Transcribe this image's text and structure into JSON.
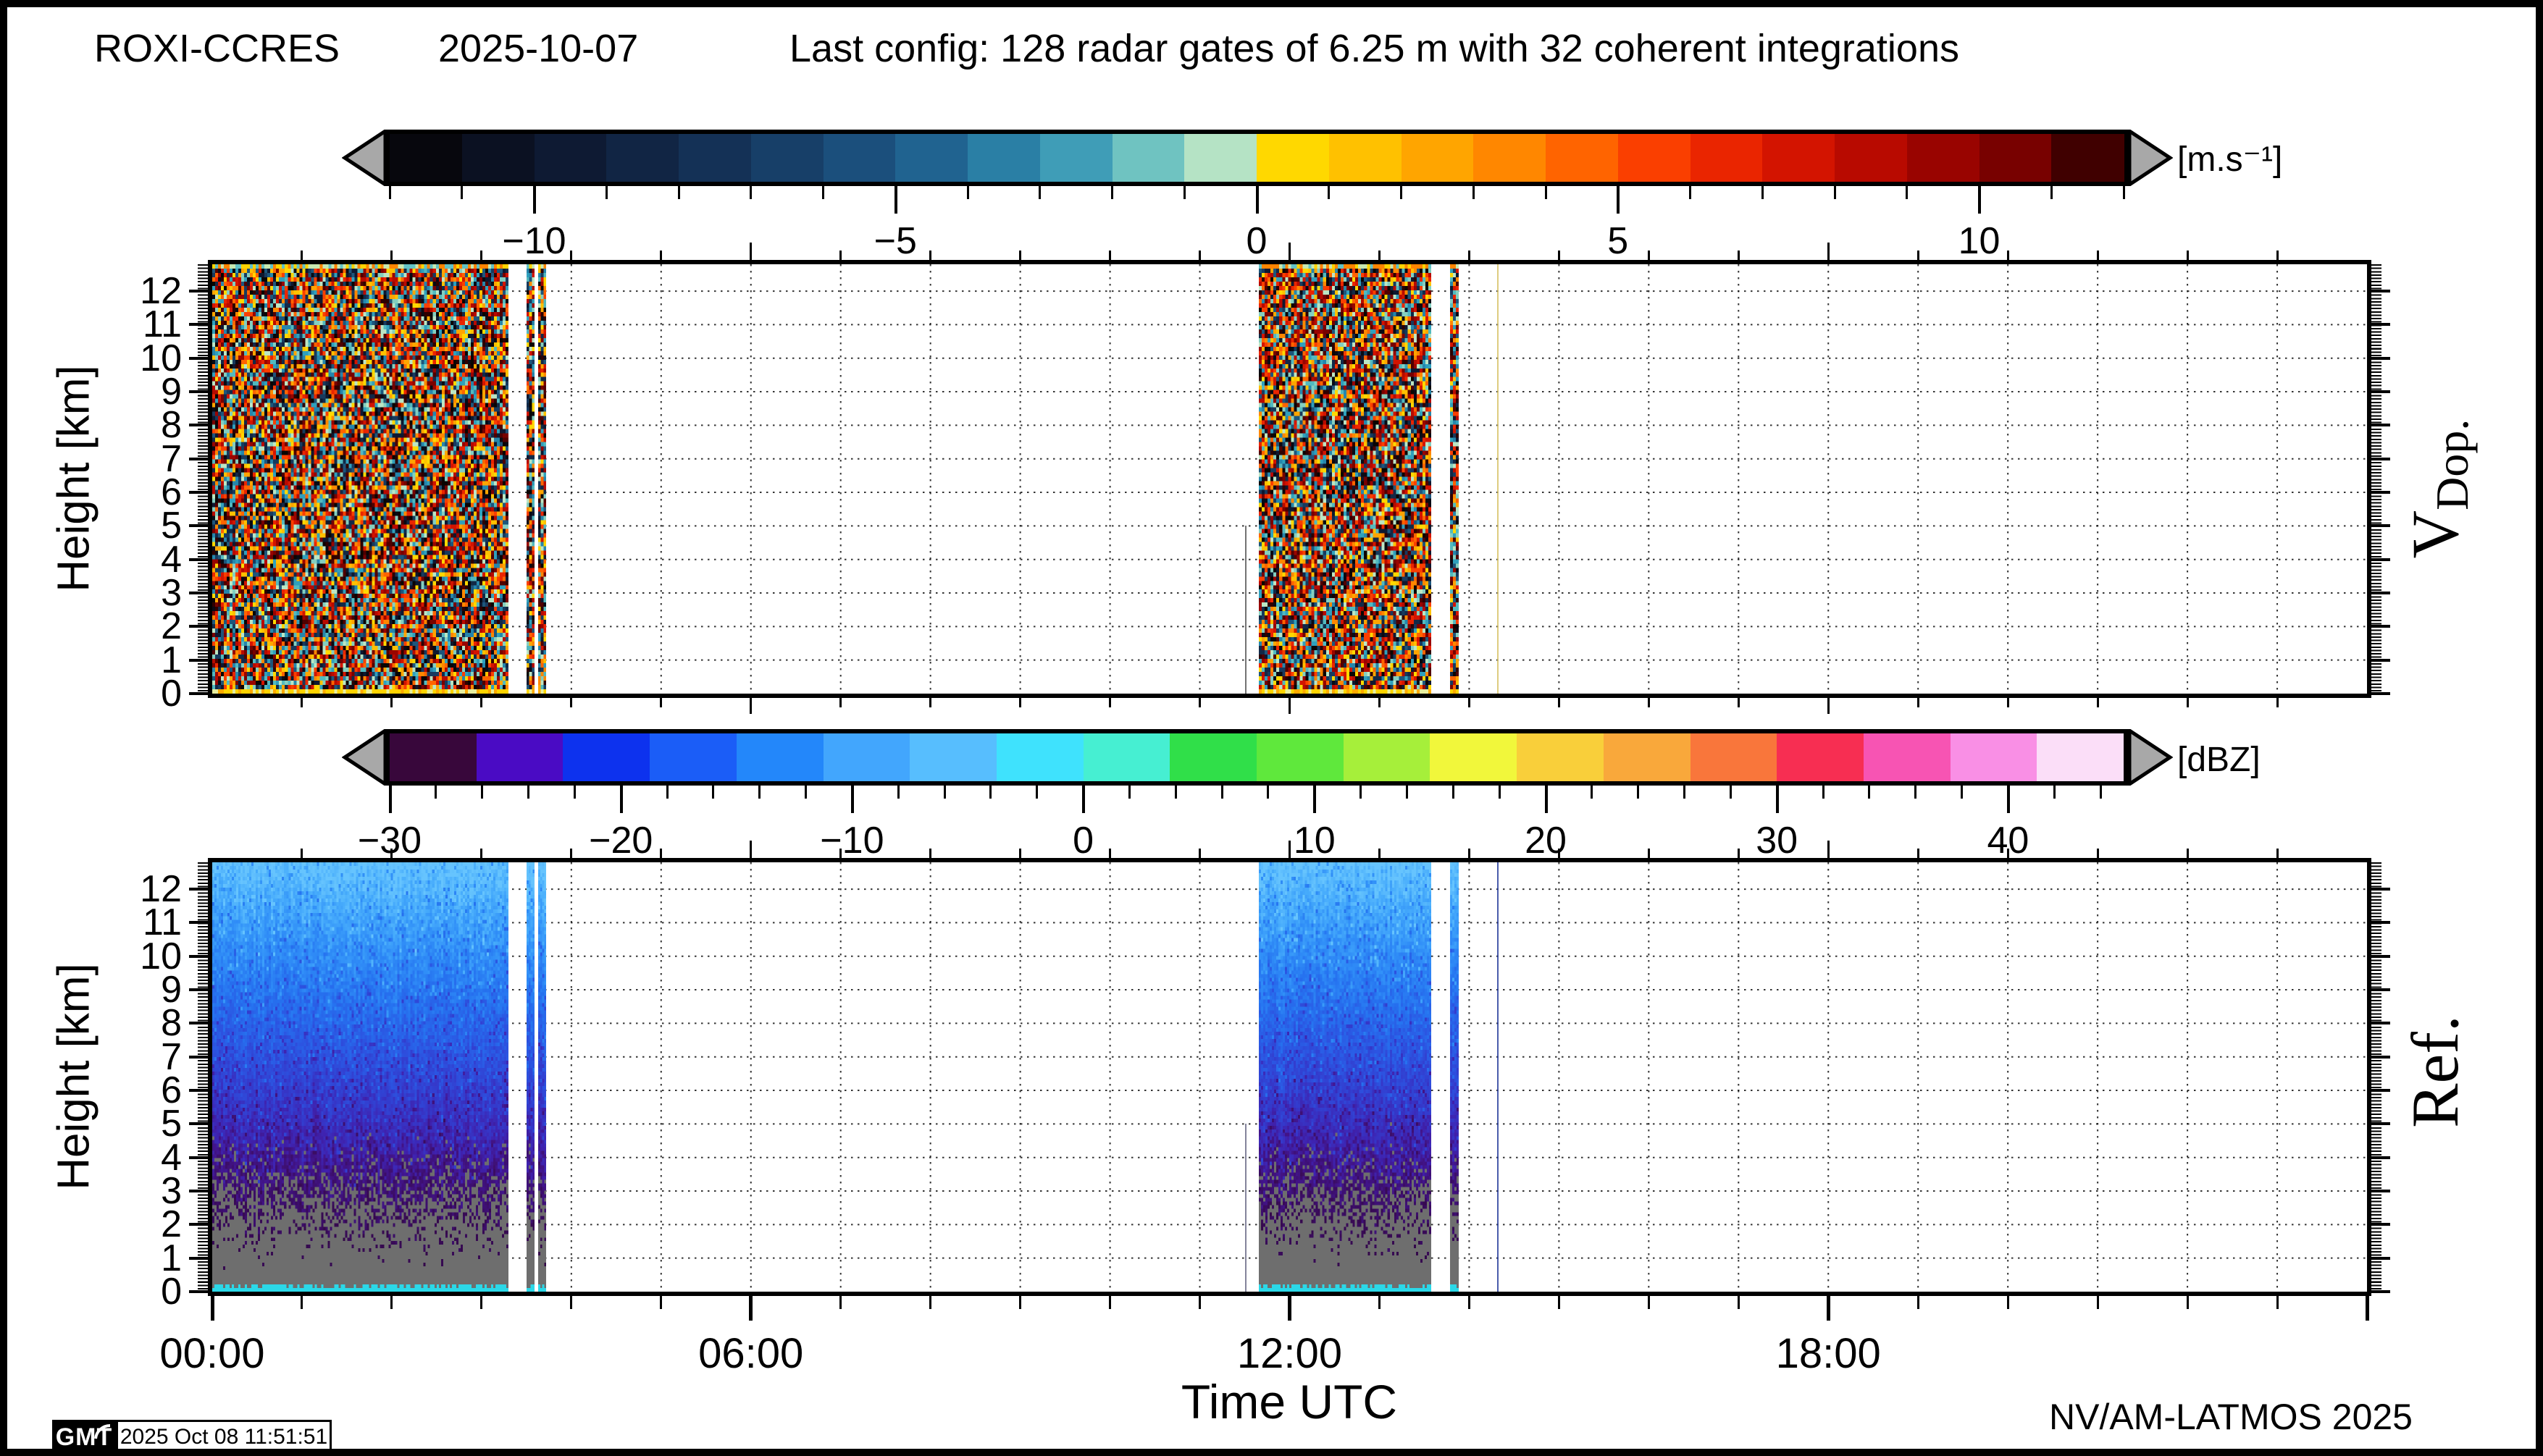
{
  "header": {
    "station": "ROXI-CCRES",
    "date": "2025-10-07",
    "config": "Last config: 128 radar gates of 6.25 m with 32 coherent integrations"
  },
  "xaxis": {
    "title": "Time UTC",
    "min_hour": 0,
    "max_hour": 24,
    "major_ticks": [
      {
        "hour": 0,
        "label": "00:00"
      },
      {
        "hour": 6,
        "label": "06:00"
      },
      {
        "hour": 12,
        "label": "12:00"
      },
      {
        "hour": 18,
        "label": "18:00"
      }
    ]
  },
  "chart_data": [
    {
      "type": "heatmap",
      "id": "doppler-velocity",
      "label_main": "V",
      "label_sub": "Dop.",
      "ylabel": "Height [km]",
      "ylim": [
        0,
        12.8
      ],
      "yticks": [
        0,
        1,
        2,
        3,
        4,
        5,
        6,
        7,
        8,
        9,
        10,
        11,
        12
      ],
      "xlim_hours": [
        0,
        24
      ],
      "grid": "dotted, 1 km horizontal, 1 h vertical",
      "colorbar": {
        "unit": "[m.s⁻¹]",
        "range": [
          -12,
          12
        ],
        "minor_tick_step": 1,
        "labels": [
          {
            "v": -10,
            "t": "−10"
          },
          {
            "v": -5,
            "t": "−5"
          },
          {
            "v": 0,
            "t": "0"
          },
          {
            "v": 5,
            "t": "5"
          },
          {
            "v": 10,
            "t": "10"
          }
        ],
        "segments": [
          {
            "v0": -12,
            "v1": -11,
            "c": "#07070d"
          },
          {
            "v0": -11,
            "v1": -10,
            "c": "#0b1122"
          },
          {
            "v0": -10,
            "v1": -9,
            "c": "#0e1a33"
          },
          {
            "v0": -9,
            "v1": -8,
            "c": "#112544"
          },
          {
            "v0": -8,
            "v1": -7,
            "c": "#143156"
          },
          {
            "v0": -7,
            "v1": -6,
            "c": "#173f68"
          },
          {
            "v0": -6,
            "v1": -5,
            "c": "#1b4f7c"
          },
          {
            "v0": -5,
            "v1": -4,
            "c": "#206390"
          },
          {
            "v0": -4,
            "v1": -3,
            "c": "#2a7fa5"
          },
          {
            "v0": -3,
            "v1": -2,
            "c": "#3f9db7"
          },
          {
            "v0": -2,
            "v1": -1,
            "c": "#6fc3c1"
          },
          {
            "v0": -1,
            "v1": 0,
            "c": "#b5e3c5"
          },
          {
            "v0": 0,
            "v1": 1,
            "c": "#ffd800"
          },
          {
            "v0": 1,
            "v1": 2,
            "c": "#ffc100"
          },
          {
            "v0": 2,
            "v1": 3,
            "c": "#ffa500"
          },
          {
            "v0": 3,
            "v1": 4,
            "c": "#ff8700"
          },
          {
            "v0": 4,
            "v1": 5,
            "c": "#ff6400"
          },
          {
            "v0": 5,
            "v1": 6,
            "c": "#fa3f00"
          },
          {
            "v0": 6,
            "v1": 7,
            "c": "#ea2500"
          },
          {
            "v0": 7,
            "v1": 8,
            "c": "#d31400"
          },
          {
            "v0": 8,
            "v1": 9,
            "c": "#b80a00"
          },
          {
            "v0": 9,
            "v1": 10,
            "c": "#990400"
          },
          {
            "v0": 10,
            "v1": 11,
            "c": "#780100"
          },
          {
            "v0": 11,
            "v1": 12,
            "c": "#400000"
          }
        ]
      },
      "data_blocks": [
        {
          "t0": 0.0,
          "t1": 3.3,
          "desc": "aliased velocity noise, full column 0-12.8 km"
        },
        {
          "t0": 3.5,
          "t1": 3.59,
          "desc": "narrow noise strip"
        },
        {
          "t0": 3.63,
          "t1": 3.72,
          "desc": "narrow noise strip"
        },
        {
          "t0": 11.66,
          "t1": 13.58,
          "desc": "aliased velocity noise, full column 0-12.8 km"
        },
        {
          "t0": 13.79,
          "t1": 13.88,
          "desc": "narrow noise strip"
        }
      ],
      "extra_lines": [
        {
          "t": 11.51,
          "km_top": 5.0,
          "color": "#5a5a5a",
          "w": 2
        },
        {
          "t": 14.32,
          "km_top": 12.8,
          "color": "#d8c36a",
          "w": 2
        }
      ]
    },
    {
      "type": "heatmap",
      "id": "reflectivity",
      "label_main": "Ref.",
      "label_sub": "",
      "ylabel": "Height [km]",
      "ylim": [
        0,
        12.8
      ],
      "yticks": [
        0,
        1,
        2,
        3,
        4,
        5,
        6,
        7,
        8,
        9,
        10,
        11,
        12
      ],
      "xlim_hours": [
        0,
        24
      ],
      "grid": "dotted, 1 km horizontal, 1 h vertical",
      "colorbar": {
        "unit": "[dBZ]",
        "range": [
          -30,
          45
        ],
        "minor_tick_step": 2,
        "labels": [
          {
            "v": -30,
            "t": "−30"
          },
          {
            "v": -20,
            "t": "−20"
          },
          {
            "v": -10,
            "t": "−10"
          },
          {
            "v": 0,
            "t": "0"
          },
          {
            "v": 10,
            "t": "10"
          },
          {
            "v": 20,
            "t": "20"
          },
          {
            "v": 30,
            "t": "30"
          },
          {
            "v": 40,
            "t": "40"
          }
        ],
        "segments": [
          {
            "v0": -30,
            "v1": -26.25,
            "c": "#38073b"
          },
          {
            "v0": -26.25,
            "v1": -22.5,
            "c": "#4a0bc4"
          },
          {
            "v0": -22.5,
            "v1": -18.75,
            "c": "#0d32ee"
          },
          {
            "v0": -18.75,
            "v1": -15,
            "c": "#1b5df7"
          },
          {
            "v0": -15,
            "v1": -11.25,
            "c": "#2387fa"
          },
          {
            "v0": -11.25,
            "v1": -7.5,
            "c": "#42a6fd"
          },
          {
            "v0": -7.5,
            "v1": -3.75,
            "c": "#57befe"
          },
          {
            "v0": -3.75,
            "v1": 0,
            "c": "#3fe2fd"
          },
          {
            "v0": 0,
            "v1": 3.75,
            "c": "#46efd2"
          },
          {
            "v0": 3.75,
            "v1": 7.5,
            "c": "#30df49"
          },
          {
            "v0": 7.5,
            "v1": 11.25,
            "c": "#5fe83c"
          },
          {
            "v0": 11.25,
            "v1": 15,
            "c": "#a6ef3a"
          },
          {
            "v0": 15,
            "v1": 18.75,
            "c": "#f1f73b"
          },
          {
            "v0": 18.75,
            "v1": 22.5,
            "c": "#f9cf3a"
          },
          {
            "v0": 22.5,
            "v1": 26.25,
            "c": "#f9a83b"
          },
          {
            "v0": 26.25,
            "v1": 30,
            "c": "#f9763b"
          },
          {
            "v0": 30,
            "v1": 33.75,
            "c": "#f72e52"
          },
          {
            "v0": 33.75,
            "v1": 37.5,
            "c": "#f754b3"
          },
          {
            "v0": 37.5,
            "v1": 41.25,
            "c": "#f98fe5"
          },
          {
            "v0": 41.25,
            "v1": 45,
            "c": "#fbdef8"
          }
        ]
      },
      "data_blocks": [
        {
          "t0": 0.0,
          "t1": 3.3,
          "desc": "noise reflectivity profile: blue aloft, purple mid, grey below ~3 km, cyan surface line"
        },
        {
          "t0": 3.5,
          "t1": 3.59,
          "desc": "narrow strip"
        },
        {
          "t0": 3.63,
          "t1": 3.72,
          "desc": "narrow strip"
        },
        {
          "t0": 11.66,
          "t1": 13.58,
          "desc": "noise reflectivity profile"
        },
        {
          "t0": 13.79,
          "t1": 13.88,
          "desc": "narrow strip"
        }
      ],
      "extra_lines": [
        {
          "t": 11.51,
          "km_top": 5.0,
          "color": "#6f6f8a",
          "w": 2
        },
        {
          "t": 14.32,
          "km_top": 12.8,
          "color": "#2a3f9e",
          "w": 2
        }
      ]
    }
  ],
  "footer": {
    "credit": "NV/AM-LATMOS 2025",
    "gmt_logo": "GMT",
    "timestamp": "2025 Oct 08 11:51:51"
  },
  "render": {
    "arrow_color": "#a8a8a8",
    "vdop_palette": [
      "#090a14",
      "#0e1830",
      "#122947",
      "#173a5e",
      "#1d567c",
      "#2586ac",
      "#2fa0bd",
      "#52b9bf",
      "#84cfc0",
      "#bce6c4",
      "#0a0503",
      "#ffd800",
      "#ffc100",
      "#ffa500",
      "#ff8700",
      "#ff6400",
      "#fa3f00",
      "#ea2500",
      "#d31400",
      "#b80a00",
      "#990400",
      "#780100",
      "#500000",
      "#2e0000"
    ],
    "vdop_top_row": [
      "#ffd400",
      "#c8e8b0",
      "#62c2c6",
      "#ff8400"
    ],
    "vdop_bottom_row": [
      "#ffd400",
      "#ffd400",
      "#ffaa00",
      "#e8f0a0"
    ],
    "ref_stops": [
      [
        0.0,
        "#66c4fe"
      ],
      [
        0.1,
        "#47acfc"
      ],
      [
        0.2,
        "#3190f8"
      ],
      [
        0.32,
        "#2673f0"
      ],
      [
        0.44,
        "#2c55e2"
      ],
      [
        0.55,
        "#343bcd"
      ],
      [
        0.65,
        "#3f23b0"
      ],
      [
        0.74,
        "#421488"
      ],
      [
        0.85,
        "#390b58"
      ],
      [
        1.0,
        "#310740"
      ]
    ],
    "ref_grey": "#6e6e6e",
    "ref_cyan": "#2bd8e8"
  }
}
